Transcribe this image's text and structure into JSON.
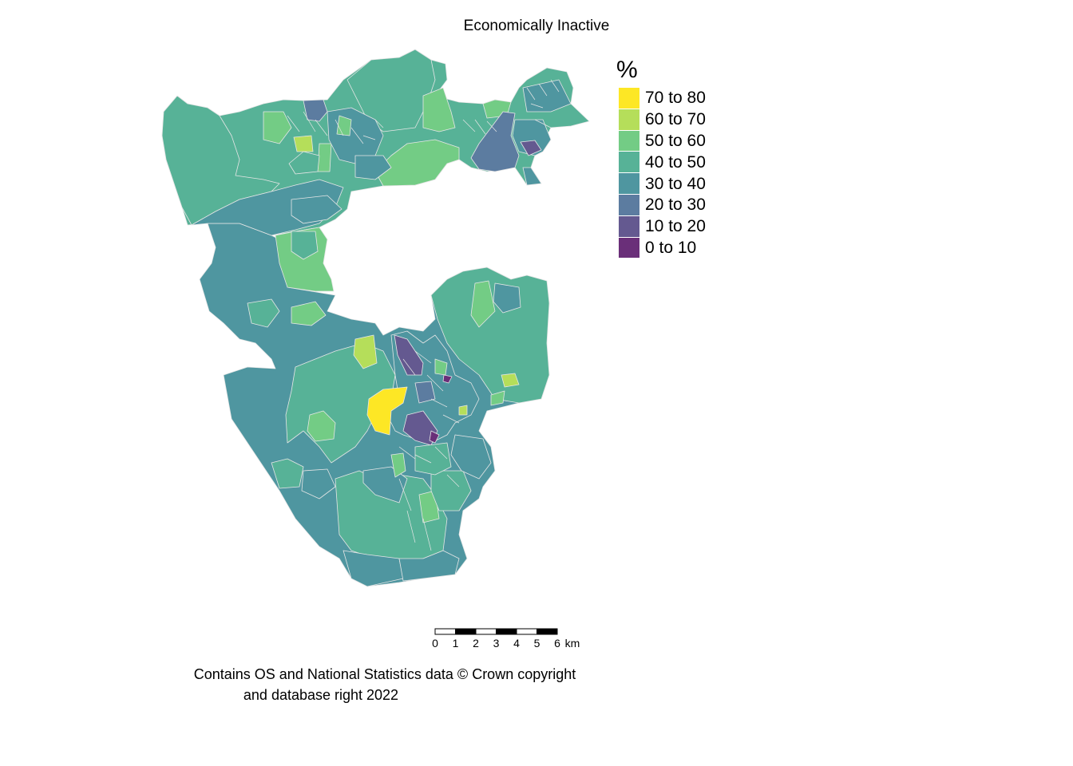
{
  "title": "Economically Inactive",
  "legend": {
    "title": "%",
    "items": [
      {
        "label": "70 to 80",
        "color": "#fde725"
      },
      {
        "label": "60 to 70",
        "color": "#b5de5a"
      },
      {
        "label": "50 to 60",
        "color": "#73cc85"
      },
      {
        "label": "40 to 50",
        "color": "#57b297"
      },
      {
        "label": "30 to 40",
        "color": "#4f96a0"
      },
      {
        "label": "20 to 30",
        "color": "#5c7ca0"
      },
      {
        "label": "10 to 20",
        "color": "#645990"
      },
      {
        "label": "0 to 10",
        "color": "#6a2f79"
      }
    ]
  },
  "scalebar": {
    "ticks": [
      "0",
      "1",
      "2",
      "3",
      "4",
      "5",
      "6"
    ],
    "unit": "km"
  },
  "credit": {
    "line1": "Contains OS and National Statistics data © Crown copyright",
    "line2": "and database right 2022"
  }
}
